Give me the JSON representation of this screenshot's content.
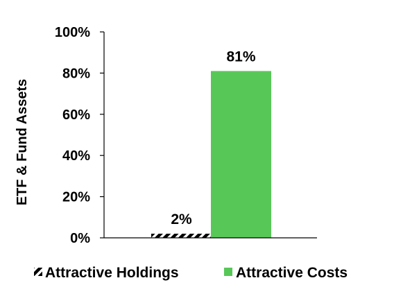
{
  "chart_data": {
    "type": "bar",
    "ylabel": "ETF & Fund Assets",
    "xlabel": "",
    "ylim": [
      0,
      100
    ],
    "y_ticks": [
      0,
      20,
      40,
      60,
      80,
      100
    ],
    "y_tick_labels": [
      "0%",
      "20%",
      "40%",
      "60%",
      "80%",
      "100%"
    ],
    "grid": false,
    "legend_position": "bottom",
    "categories": [
      "Attractive Holdings",
      "Attractive Costs"
    ],
    "series": [
      {
        "name": "Attractive Holdings",
        "value": 2,
        "label": "2%",
        "color": "#000000",
        "pattern": "hatched"
      },
      {
        "name": "Attractive Costs",
        "value": 81,
        "label": "81%",
        "color": "#57c857",
        "pattern": "solid"
      }
    ]
  }
}
